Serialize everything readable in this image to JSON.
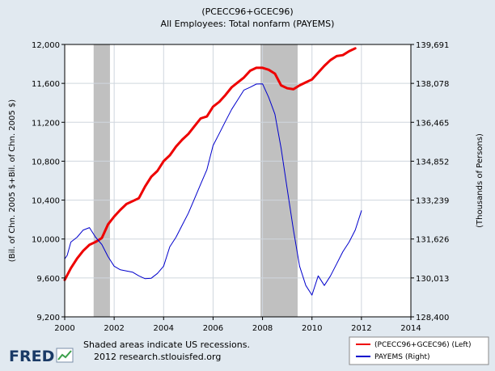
{
  "chart_data": {
    "type": "line",
    "title": "(PCECC96+GCEC96)",
    "subtitle": "All Employees: Total nonfarm (PAYEMS)",
    "xlabel": "",
    "ylabel_left": "(Bil. of Chn. 2005 $+Bil. of Chn. 2005 $)",
    "ylabel_right": "(Thousands of Persons)",
    "xlim": [
      2000,
      2014
    ],
    "x_ticks": [
      "2000",
      "2002",
      "2004",
      "2006",
      "2008",
      "2010",
      "2012",
      "2014"
    ],
    "ylim_left": [
      9200,
      12000
    ],
    "y_ticks_left": [
      "9,200",
      "9,600",
      "10,000",
      "10,400",
      "10,800",
      "11,200",
      "11,600",
      "12,000"
    ],
    "ylim_right": [
      128400,
      139691
    ],
    "y_ticks_right": [
      "128,400",
      "130,013",
      "131,626",
      "133,239",
      "134,852",
      "136,465",
      "138,078",
      "139,691"
    ],
    "grid": true,
    "recessions": [
      {
        "start": 2001.17,
        "end": 2001.83
      },
      {
        "start": 2007.92,
        "end": 2009.42
      }
    ],
    "legend": {
      "placement": "bottom-right",
      "entries": [
        "(PCECC96+GCEC96) (Left)",
        "PAYEMS (Right)"
      ]
    },
    "series": [
      {
        "name": "(PCECC96+GCEC96) (Left)",
        "axis": "left",
        "color": "#ee0000",
        "x": [
          2000.0,
          2000.25,
          2000.5,
          2000.75,
          2001.0,
          2001.25,
          2001.5,
          2001.75,
          2002.0,
          2002.25,
          2002.5,
          2002.75,
          2003.0,
          2003.25,
          2003.5,
          2003.75,
          2004.0,
          2004.25,
          2004.5,
          2004.75,
          2005.0,
          2005.25,
          2005.5,
          2005.75,
          2006.0,
          2006.25,
          2006.5,
          2006.75,
          2007.0,
          2007.25,
          2007.5,
          2007.75,
          2008.0,
          2008.25,
          2008.5,
          2008.75,
          2009.0,
          2009.25,
          2009.5,
          2009.75,
          2010.0,
          2010.25,
          2010.5,
          2010.75,
          2011.0,
          2011.25,
          2011.5,
          2011.75
        ],
        "y": [
          9580,
          9700,
          9800,
          9880,
          9940,
          9970,
          10010,
          10150,
          10230,
          10300,
          10360,
          10390,
          10420,
          10540,
          10640,
          10700,
          10800,
          10860,
          10950,
          11020,
          11080,
          11160,
          11240,
          11260,
          11360,
          11410,
          11480,
          11560,
          11610,
          11660,
          11730,
          11760,
          11760,
          11740,
          11700,
          11580,
          11550,
          11540,
          11580,
          11610,
          11640,
          11710,
          11780,
          11840,
          11880,
          11890,
          11930,
          11960
        ]
      },
      {
        "name": "PAYEMS (Right)",
        "axis": "right",
        "color": "#0000cc",
        "x": [
          2000.0,
          2000.1,
          2000.25,
          2000.5,
          2000.75,
          2001.0,
          2001.25,
          2001.5,
          2001.75,
          2002.0,
          2002.25,
          2002.5,
          2002.75,
          2003.0,
          2003.25,
          2003.5,
          2003.75,
          2004.0,
          2004.25,
          2004.5,
          2004.75,
          2005.0,
          2005.25,
          2005.5,
          2005.75,
          2006.0,
          2006.25,
          2006.5,
          2006.75,
          2007.0,
          2007.25,
          2007.5,
          2007.75,
          2008.0,
          2008.25,
          2008.5,
          2008.75,
          2009.0,
          2009.25,
          2009.5,
          2009.75,
          2010.0,
          2010.25,
          2010.5,
          2010.75,
          2011.0,
          2011.25,
          2011.5,
          2011.75,
          2012.0
        ],
        "y": [
          130800,
          130950,
          131500,
          131700,
          132000,
          132100,
          131700,
          131400,
          130900,
          130500,
          130350,
          130300,
          130250,
          130100,
          129980,
          130000,
          130200,
          130500,
          131300,
          131700,
          132200,
          132700,
          133300,
          133900,
          134500,
          135500,
          136000,
          136500,
          137000,
          137400,
          137800,
          137920,
          138050,
          138060,
          137500,
          136800,
          135400,
          133700,
          132000,
          130500,
          129700,
          129300,
          130100,
          129700,
          130100,
          130600,
          131100,
          131500,
          132000,
          132800
        ]
      }
    ]
  },
  "footer": {
    "logo": "FRED",
    "note": "Shaded areas indicate US recessions.",
    "source": "2012 research.stlouisfed.org"
  }
}
